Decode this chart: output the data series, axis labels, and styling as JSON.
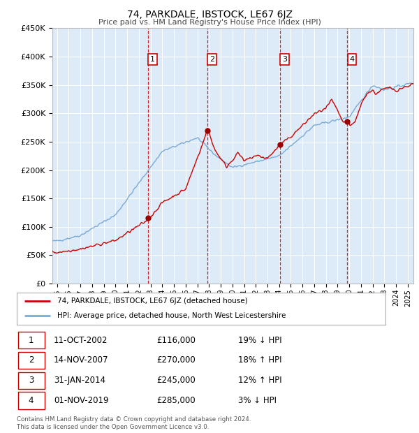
{
  "title": "74, PARKDALE, IBSTOCK, LE67 6JZ",
  "subtitle": "Price paid vs. HM Land Registry's House Price Index (HPI)",
  "background_color": "#ffffff",
  "plot_bg_color": "#ddeaf8",
  "hpi_line_color": "#7baad4",
  "price_line_color": "#cc0000",
  "marker_color": "#990000",
  "vline_color": "#cc0000",
  "ylim": [
    0,
    450000
  ],
  "yticks": [
    0,
    50000,
    100000,
    150000,
    200000,
    250000,
    300000,
    350000,
    400000,
    450000
  ],
  "ytick_labels": [
    "£0",
    "£50K",
    "£100K",
    "£150K",
    "£200K",
    "£250K",
    "£300K",
    "£350K",
    "£400K",
    "£450K"
  ],
  "xstart": 1994.6,
  "xend": 2025.5,
  "sales": [
    {
      "label": "1",
      "date_num": 2002.78,
      "price": 116000
    },
    {
      "label": "2",
      "date_num": 2007.87,
      "price": 270000
    },
    {
      "label": "3",
      "date_num": 2014.08,
      "price": 245000
    },
    {
      "label": "4",
      "date_num": 2019.83,
      "price": 285000
    }
  ],
  "legend_entries": [
    {
      "label": "74, PARKDALE, IBSTOCK, LE67 6JZ (detached house)",
      "color": "#cc0000"
    },
    {
      "label": "HPI: Average price, detached house, North West Leicestershire",
      "color": "#7baad4"
    }
  ],
  "table_rows": [
    {
      "num": "1",
      "date": "11-OCT-2002",
      "price": "£116,000",
      "hpi": "19% ↓ HPI"
    },
    {
      "num": "2",
      "date": "14-NOV-2007",
      "price": "£270,000",
      "hpi": "18% ↑ HPI"
    },
    {
      "num": "3",
      "date": "31-JAN-2014",
      "price": "£245,000",
      "hpi": "12% ↑ HPI"
    },
    {
      "num": "4",
      "date": "01-NOV-2019",
      "price": "£285,000",
      "hpi": "3% ↓ HPI"
    }
  ],
  "footnote": "Contains HM Land Registry data © Crown copyright and database right 2024.\nThis data is licensed under the Open Government Licence v3.0."
}
